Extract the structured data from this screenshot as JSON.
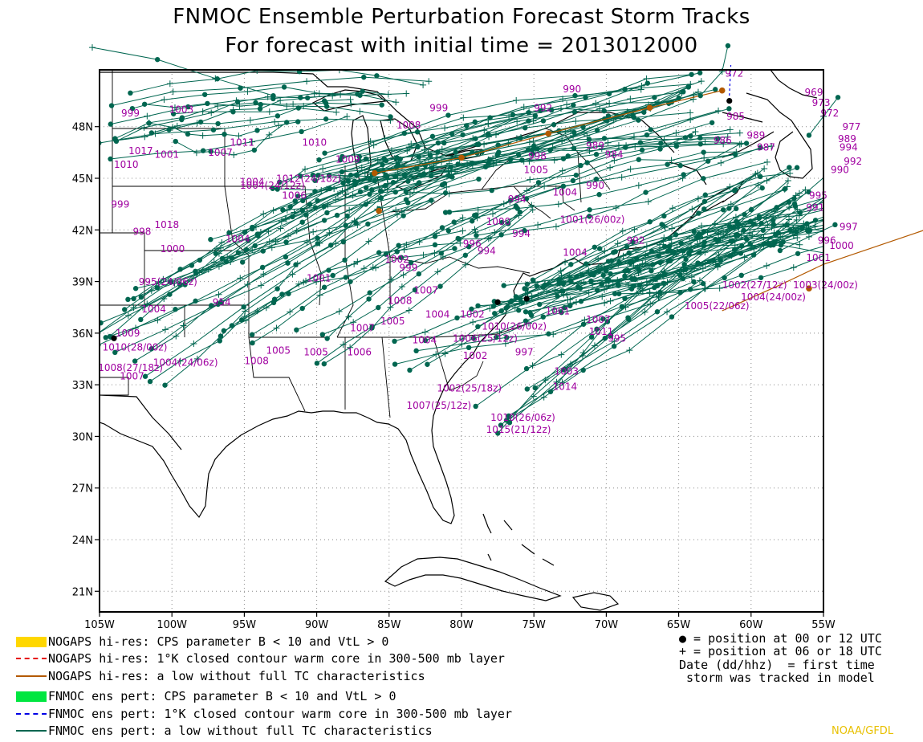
{
  "title": {
    "line1": "FNMOC Ensemble Perturbation Forecast Storm Tracks",
    "line2": "For forecast with initial time = 2013012000"
  },
  "map": {
    "lon_range": [
      -105,
      -55
    ],
    "lat_range": [
      19.8,
      51.3
    ],
    "lon_ticks": [
      "105W",
      "100W",
      "95W",
      "90W",
      "85W",
      "80W",
      "75W",
      "70W",
      "65W",
      "60W",
      "55W"
    ],
    "lat_ticks": [
      "21N",
      "24N",
      "27N",
      "30N",
      "33N",
      "36N",
      "39N",
      "42N",
      "45N",
      "48N"
    ],
    "grid": "dotted"
  },
  "legend": [
    {
      "label": "NOGAPS hi-res: CPS parameter B < 10 and VtL > 0",
      "color": "#ffd700",
      "style": "bar"
    },
    {
      "label": "NOGAPS hi-res: 1°K closed contour warm core in 300-500 mb layer",
      "color": "#e60000",
      "style": "dashed"
    },
    {
      "label": "NOGAPS hi-res: a low without full TC characteristics",
      "color": "#b35900",
      "style": "solid"
    },
    {
      "label": "FNMOC ens pert: CPS parameter B < 10 and VtL > 0",
      "color": "#00e640",
      "style": "bar"
    },
    {
      "label": "FNMOC ens pert: 1°K closed contour warm core in 300-500 mb layer",
      "color": "#0000e6",
      "style": "dashed"
    },
    {
      "label": "FNMOC ens pert: a low without full TC characteristics",
      "color": "#006650",
      "style": "solid"
    }
  ],
  "key": {
    "line1": "● = position at 00 or 12 UTC",
    "line2": "+ = position at 06 or 18 UTC",
    "line3": "Date (dd/hhz)  = first time",
    "line4": " storm was tracked in model"
  },
  "credit": "NOAA/GFDL",
  "colors": {
    "track": "#006650",
    "label": "#a000a0",
    "nogaps": "#b35900",
    "map": "#000000"
  },
  "labels": [
    {
      "text": "972",
      "lon": -61.8,
      "lat": 50.9
    },
    {
      "text": "969",
      "lon": -56.3,
      "lat": 49.8
    },
    {
      "text": "973",
      "lon": -55.8,
      "lat": 49.2
    },
    {
      "text": "972",
      "lon": -55.2,
      "lat": 48.6
    },
    {
      "text": "977",
      "lon": -53.7,
      "lat": 47.8
    },
    {
      "text": "999",
      "lon": -82.2,
      "lat": 48.9
    },
    {
      "text": "1003",
      "lon": -100.2,
      "lat": 48.8
    },
    {
      "text": "1008",
      "lon": -84.5,
      "lat": 47.9
    },
    {
      "text": "1011",
      "lon": -96.0,
      "lat": 46.9
    },
    {
      "text": "1010",
      "lon": -91.0,
      "lat": 46.9
    },
    {
      "text": "1007",
      "lon": -97.5,
      "lat": 46.3
    },
    {
      "text": "1017",
      "lon": -103.0,
      "lat": 46.4
    },
    {
      "text": "1001",
      "lon": -101.2,
      "lat": 46.2
    },
    {
      "text": "1010",
      "lon": -104.0,
      "lat": 45.6
    },
    {
      "text": "1009",
      "lon": -88.7,
      "lat": 45.9
    },
    {
      "text": "1004(24/12z)",
      "lon": -95.3,
      "lat": 44.4
    },
    {
      "text": "1012(24/18z)",
      "lon": -92.8,
      "lat": 44.8
    },
    {
      "text": "1006",
      "lon": -92.4,
      "lat": 43.8
    },
    {
      "text": "999",
      "lon": -104.2,
      "lat": 43.3
    },
    {
      "text": "1018",
      "lon": -101.2,
      "lat": 42.1
    },
    {
      "text": "998",
      "lon": -102.7,
      "lat": 41.7
    },
    {
      "text": "1004",
      "lon": -96.3,
      "lat": 41.3
    },
    {
      "text": "1000",
      "lon": -100.8,
      "lat": 40.7
    },
    {
      "text": "999",
      "lon": -84.3,
      "lat": 39.6
    },
    {
      "text": "1002",
      "lon": -85.3,
      "lat": 40.1
    },
    {
      "text": "1001",
      "lon": -90.7,
      "lat": 39.0
    },
    {
      "text": "995(24/06z)",
      "lon": -102.3,
      "lat": 38.8
    },
    {
      "text": "954",
      "lon": -97.2,
      "lat": 37.6
    },
    {
      "text": "1004",
      "lon": -102.1,
      "lat": 37.2
    },
    {
      "text": "1009",
      "lon": -103.9,
      "lat": 35.8
    },
    {
      "text": "1010(28/00z)",
      "lon": -104.8,
      "lat": 35.0
    },
    {
      "text": "1004(24/06z)",
      "lon": -101.3,
      "lat": 34.1
    },
    {
      "text": "1008(27/18z)",
      "lon": -105.1,
      "lat": 33.8
    },
    {
      "text": "1007",
      "lon": -103.6,
      "lat": 33.3
    },
    {
      "text": "1008",
      "lon": -95.0,
      "lat": 34.2
    },
    {
      "text": "1005",
      "lon": -93.5,
      "lat": 34.8
    },
    {
      "text": "1005",
      "lon": -90.9,
      "lat": 34.7
    },
    {
      "text": "1006",
      "lon": -87.9,
      "lat": 34.7
    },
    {
      "text": "1004",
      "lon": -83.4,
      "lat": 35.4
    },
    {
      "text": "1007",
      "lon": -87.7,
      "lat": 36.1
    },
    {
      "text": "1005",
      "lon": -85.6,
      "lat": 36.5
    },
    {
      "text": "1004",
      "lon": -82.5,
      "lat": 36.9
    },
    {
      "text": "1002",
      "lon": -80.1,
      "lat": 36.9
    },
    {
      "text": "1008",
      "lon": -85.1,
      "lat": 37.7
    },
    {
      "text": "1007",
      "lon": -83.3,
      "lat": 38.3
    },
    {
      "text": "1006(25/12z)",
      "lon": -80.6,
      "lat": 35.5
    },
    {
      "text": "1010(26/00z)",
      "lon": -78.6,
      "lat": 36.2
    },
    {
      "text": "1002",
      "lon": -79.9,
      "lat": 34.5
    },
    {
      "text": "997",
      "lon": -76.3,
      "lat": 34.7
    },
    {
      "text": "1002(25/18z)",
      "lon": -81.7,
      "lat": 32.6
    },
    {
      "text": "1007(25/12z)",
      "lon": -83.8,
      "lat": 31.6
    },
    {
      "text": "1010(26/06z)",
      "lon": -78.0,
      "lat": 30.9
    },
    {
      "text": "1015(21/12z)",
      "lon": -78.3,
      "lat": 30.2
    },
    {
      "text": "1003",
      "lon": -73.6,
      "lat": 33.6
    },
    {
      "text": "1014",
      "lon": -73.7,
      "lat": 32.7
    },
    {
      "text": "1011",
      "lon": -71.2,
      "lat": 35.9
    },
    {
      "text": "995",
      "lon": -69.9,
      "lat": 35.5
    },
    {
      "text": "1007",
      "lon": -71.4,
      "lat": 36.6
    },
    {
      "text": "1001",
      "lon": -74.2,
      "lat": 37.1
    },
    {
      "text": "1005(22/06z)",
      "lon": -64.6,
      "lat": 37.4
    },
    {
      "text": "1004(24/00z)",
      "lon": -60.7,
      "lat": 37.9
    },
    {
      "text": "1002(27/12z)",
      "lon": -62.0,
      "lat": 38.6
    },
    {
      "text": "1003(24/00z)",
      "lon": -57.1,
      "lat": 38.6
    },
    {
      "text": "1001",
      "lon": -56.2,
      "lat": 40.2
    },
    {
      "text": "1000",
      "lon": -54.6,
      "lat": 40.9
    },
    {
      "text": "996",
      "lon": -55.4,
      "lat": 41.2
    },
    {
      "text": "997",
      "lon": -53.9,
      "lat": 42.0
    },
    {
      "text": "991",
      "lon": -56.2,
      "lat": 43.1
    },
    {
      "text": "995",
      "lon": -56.0,
      "lat": 43.8
    },
    {
      "text": "990",
      "lon": -54.5,
      "lat": 45.3
    },
    {
      "text": "992",
      "lon": -53.6,
      "lat": 45.8
    },
    {
      "text": "994",
      "lon": -53.9,
      "lat": 46.6
    },
    {
      "text": "989",
      "lon": -54.0,
      "lat": 47.1
    },
    {
      "text": "996",
      "lon": -79.9,
      "lat": 41.0
    },
    {
      "text": "994",
      "lon": -76.5,
      "lat": 41.6
    },
    {
      "text": "1000",
      "lon": -78.3,
      "lat": 42.3
    },
    {
      "text": "1001(26/00z)",
      "lon": -73.2,
      "lat": 42.4
    },
    {
      "text": "1004",
      "lon": -73.0,
      "lat": 40.5
    },
    {
      "text": "994",
      "lon": -78.9,
      "lat": 40.6
    },
    {
      "text": "992",
      "lon": -68.6,
      "lat": 41.2
    },
    {
      "text": "1004",
      "lon": -73.7,
      "lat": 44.0
    },
    {
      "text": "990",
      "lon": -71.4,
      "lat": 44.4
    },
    {
      "text": "1005",
      "lon": -75.7,
      "lat": 45.3
    },
    {
      "text": "994",
      "lon": -76.8,
      "lat": 43.6
    },
    {
      "text": "998",
      "lon": -75.4,
      "lat": 46.1
    },
    {
      "text": "989",
      "lon": -71.4,
      "lat": 46.7
    },
    {
      "text": "984",
      "lon": -70.1,
      "lat": 46.2
    },
    {
      "text": "986",
      "lon": -62.6,
      "lat": 47.0
    },
    {
      "text": "987",
      "lon": -59.6,
      "lat": 46.6
    },
    {
      "text": "985",
      "lon": -61.7,
      "lat": 48.4
    },
    {
      "text": "989",
      "lon": -60.3,
      "lat": 47.3
    },
    {
      "text": "990",
      "lon": -73.0,
      "lat": 50.0
    },
    {
      "text": "992",
      "lon": -75.0,
      "lat": 48.9
    },
    {
      "text": "1004",
      "lon": -95.3,
      "lat": 44.6
    },
    {
      "text": "999",
      "lon": -103.5,
      "lat": 48.6
    }
  ]
}
